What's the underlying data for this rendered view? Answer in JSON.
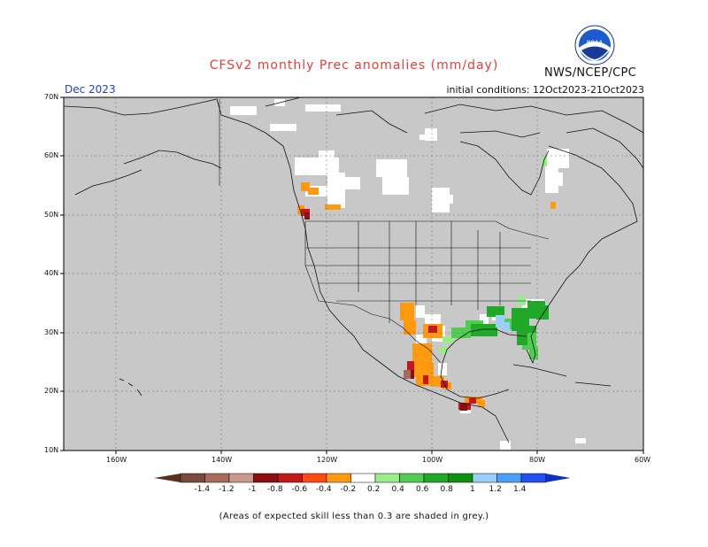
{
  "header": {
    "title": "CFSv2 monthly Prec anomalies (mm/day)",
    "agency": "NWS/NCEP/CPC",
    "logo_text": "NOAA",
    "month": "Dec 2023",
    "initial_conditions": "initial conditions: 12Oct2023-21Oct2023"
  },
  "map": {
    "lat_labels": [
      "70N",
      "60N",
      "50N",
      "40N",
      "30N",
      "20N",
      "10N"
    ],
    "lon_labels": [
      "160W",
      "140W",
      "120W",
      "100W",
      "80W",
      "60W"
    ],
    "lat_range": [
      10,
      70
    ],
    "lon_range": [
      -170,
      -60
    ],
    "background_color": "#c8c8c8",
    "grid": true
  },
  "colorbar": {
    "labels": [
      "-1.4",
      "-1.2",
      "-1",
      "-0.8",
      "-0.6",
      "-0.4",
      "-0.2",
      "0.2",
      "0.4",
      "0.6",
      "0.8",
      "1",
      "1.2",
      "1.4"
    ],
    "colors": [
      "#7a4a3a",
      "#a86a5a",
      "#c89a8c",
      "#8c1010",
      "#c41818",
      "#ff4a10",
      "#ff9a10",
      "#ffffff",
      "#98ee88",
      "#50cc50",
      "#20a828",
      "#109010",
      "#98d0f8",
      "#4aa0f8",
      "#2050f0"
    ],
    "end_left_color": "#5a3020",
    "end_right_color": "#1030c0"
  },
  "footnote": "(Areas of expected skill less than 0.3 are shaded in grey.)"
}
